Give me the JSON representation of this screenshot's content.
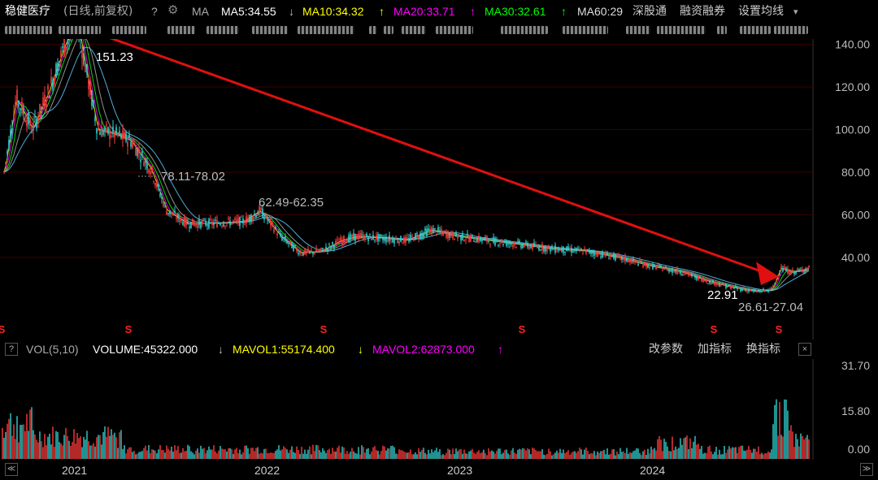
{
  "header": {
    "stock_name": "稳健医疗",
    "mode": "(日线,前复权)",
    "help": "?",
    "ma_label": "MA",
    "ma5": "MA5:34.55",
    "ma5_arrow": "↓",
    "ma10": "MA10:34.32",
    "ma10_arrow": "↑",
    "ma20": "MA20:33.71",
    "ma20_arrow": "↑",
    "ma30": "MA30:32.61",
    "ma30_arrow": "↑",
    "ma60": "MA60:29",
    "links": [
      "深股通",
      "融资融券",
      "设置均线"
    ],
    "dropdown_glyph": "▾"
  },
  "colors": {
    "background": "#000000",
    "up": "#ff3b3b",
    "down": "#2fd0d0",
    "ma5": "#ffffff",
    "ma10": "#ffff00",
    "ma20": "#ff00ff",
    "ma30": "#00ff00",
    "ma60": "#aaaaaa",
    "arrow": "#e01010",
    "gridline": "#3a0000",
    "marker": "#ff2020"
  },
  "price_axis": {
    "ticks": [
      "140.00",
      "120.00",
      "100.00",
      "80.00",
      "60.00",
      "40.00"
    ],
    "min": 20,
    "max": 155
  },
  "annotations": {
    "high": "151.23",
    "gap1": "78.11-78.02",
    "gap2": "62.49-62.35",
    "low": "22.91",
    "gap3": "26.61-27.04"
  },
  "markers": {
    "glyph": "S",
    "count": 6
  },
  "volume_panel": {
    "help": "?",
    "title": "VOL(5,10)",
    "volume": "VOLUME:45322.000",
    "volume_arrow": "↓",
    "mavol1": "MAVOL1:55174.400",
    "mavol1_arrow": "↓",
    "mavol2": "MAVOL2:62873.000",
    "mavol2_arrow": "↑",
    "buttons": [
      "改参数",
      "加指标",
      "换指标"
    ],
    "close": "×",
    "ticks": [
      "31.70",
      "15.80",
      "0.00"
    ]
  },
  "x_axis": {
    "labels": [
      "2021",
      "2022",
      "2023",
      "2024"
    ],
    "scroll_left": "≪",
    "scroll_right": "≫"
  }
}
